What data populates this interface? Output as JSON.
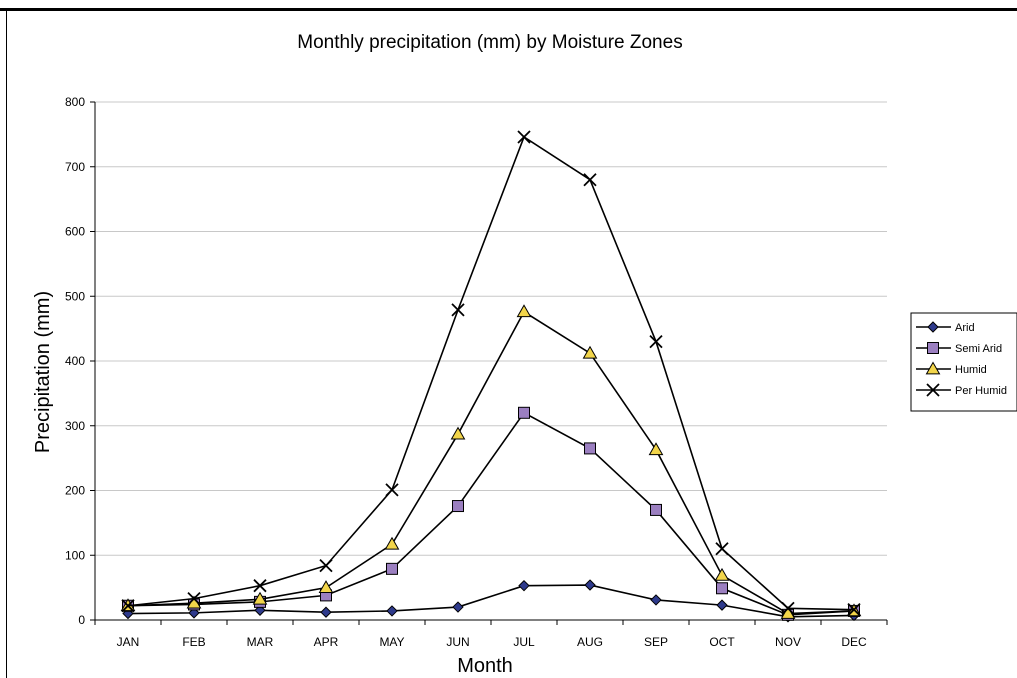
{
  "chart_data": {
    "type": "line",
    "title": "Monthly precipitation (mm) by Moisture Zones",
    "xlabel": "Month",
    "ylabel": "Precipitation (mm)",
    "categories": [
      "JAN",
      "FEB",
      "MAR",
      "APR",
      "MAY",
      "JUN",
      "JUL",
      "AUG",
      "SEP",
      "OCT",
      "NOV",
      "DEC"
    ],
    "ylim": [
      0,
      800
    ],
    "yticks": [
      0,
      100,
      200,
      300,
      400,
      500,
      600,
      700,
      800
    ],
    "grid": "horizontal",
    "legend_position": "right",
    "series": [
      {
        "name": "Arid",
        "marker": "diamond",
        "color": "#2e3a8c",
        "values": [
          10,
          11,
          15,
          12,
          14,
          20,
          53,
          54,
          31,
          23,
          5,
          7
        ]
      },
      {
        "name": "Semi Arid",
        "marker": "square",
        "color": "#9b7fc0",
        "values": [
          22,
          24,
          28,
          38,
          79,
          176,
          320,
          265,
          170,
          49,
          8,
          14
        ]
      },
      {
        "name": "Humid",
        "marker": "triangle",
        "color": "#f2d54a",
        "values": [
          22,
          26,
          32,
          50,
          117,
          287,
          476,
          412,
          263,
          69,
          10,
          14
        ]
      },
      {
        "name": "Per Humid",
        "marker": "x",
        "color": "#000000",
        "values": [
          22,
          33,
          53,
          84,
          201,
          479,
          746,
          680,
          430,
          110,
          18,
          16
        ]
      }
    ]
  }
}
